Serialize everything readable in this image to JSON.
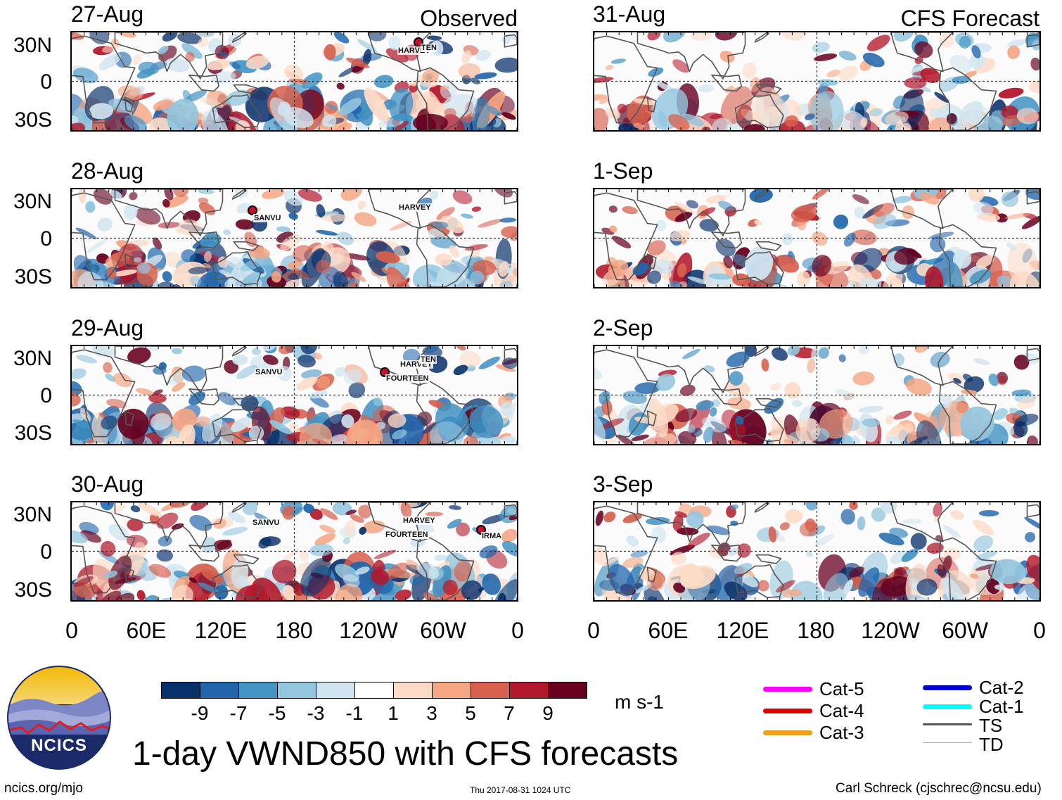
{
  "panels": {
    "observed": [
      {
        "date": "27-Aug",
        "tag": "Observed"
      },
      {
        "date": "28-Aug",
        "tag": ""
      },
      {
        "date": "29-Aug",
        "tag": ""
      },
      {
        "date": "30-Aug",
        "tag": ""
      }
    ],
    "forecast": [
      {
        "date": "31-Aug",
        "tag": "CFS Forecast"
      },
      {
        "date": "1-Sep",
        "tag": ""
      },
      {
        "date": "2-Sep",
        "tag": ""
      },
      {
        "date": "3-Sep",
        "tag": ""
      }
    ]
  },
  "lat_labels": [
    "30N",
    "0",
    "30S"
  ],
  "lon_labels": [
    "0",
    "60E",
    "120E",
    "180",
    "120W",
    "60W",
    "0"
  ],
  "storms": {
    "p0": [
      "HARVEY",
      "TEN"
    ],
    "p1": [
      "SANVU",
      "HARVEY"
    ],
    "p2": [
      "SANVU",
      "HARVEY",
      "TEN",
      "FOURTEEN"
    ],
    "p3": [
      "SANVU",
      "HARVEY",
      "FOURTEEN",
      "IRMA"
    ]
  },
  "colorbar": {
    "labels": [
      "-9",
      "-7",
      "-5",
      "-3",
      "-1",
      "1",
      "3",
      "5",
      "7",
      "9"
    ],
    "units": "m s-1",
    "colors": [
      "#08306b",
      "#2166ac",
      "#4393c3",
      "#92c5de",
      "#d1e5f0",
      "#ffffff",
      "#fddbc7",
      "#f4a582",
      "#d6604d",
      "#b2182b",
      "#67001f"
    ]
  },
  "title": "1-day VWND850 with CFS forecasts",
  "logo_text": "NCICS",
  "footer": {
    "left": "ncics.org/mjo",
    "center": "Thu 2017-08-31 1024 UTC",
    "right": "Carl Schreck (cjschrec@ncsu.edu)"
  },
  "legend": [
    {
      "label": "Cat-5",
      "color": "#ff00ff"
    },
    {
      "label": "Cat-4",
      "color": "#e00000"
    },
    {
      "label": "Cat-3",
      "color": "#e8a317"
    },
    {
      "label": "Cat-2",
      "color": "#0000cc"
    },
    {
      "label": "Cat-1",
      "color": "#00ffff"
    },
    {
      "label": "TS",
      "color": "#555555"
    },
    {
      "label": "TD",
      "color": "#aaaaaa"
    }
  ]
}
